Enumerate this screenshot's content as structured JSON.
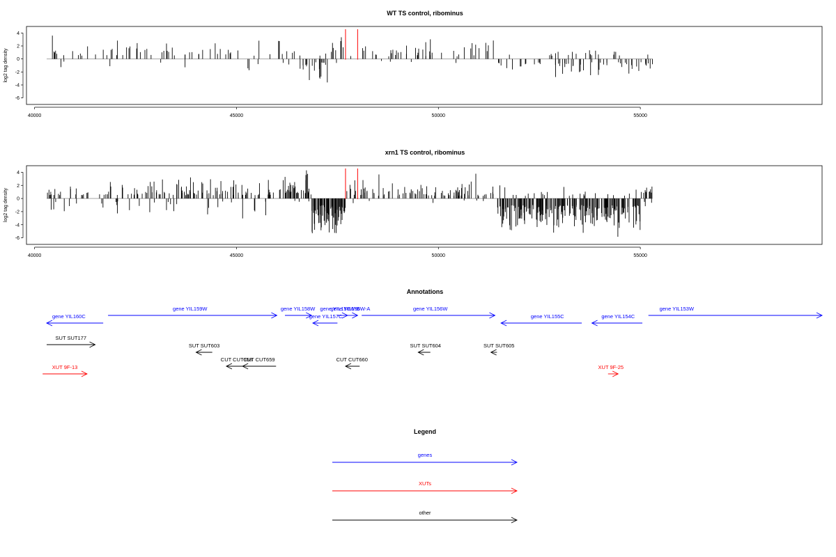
{
  "panels": [
    {
      "title": "WT TS control, ribominus",
      "ylabel": "log2 tag density",
      "yticks": [
        -6,
        -4,
        -2,
        0,
        2,
        4
      ],
      "xticks": [
        40000,
        45000,
        50000,
        55000
      ],
      "xlim": [
        39800,
        59500
      ],
      "ylim": [
        -7,
        5
      ],
      "seed": 11,
      "profile": [
        {
          "from": 40300,
          "to": 46500,
          "n": 70,
          "sign": "mixed",
          "pos": [
            0.5,
            3.8
          ],
          "neg": [
            -0.4,
            -2.0
          ],
          "negFrac": 0.12
        },
        {
          "from": 46500,
          "to": 47300,
          "n": 22,
          "sign": "neg",
          "pos": [
            0.3,
            1.5
          ],
          "neg": [
            -0.5,
            -4.2
          ],
          "negFrac": 0.85
        },
        {
          "from": 47300,
          "to": 51400,
          "n": 55,
          "sign": "mixed",
          "pos": [
            0.4,
            3.5
          ],
          "neg": [
            -0.3,
            -1.5
          ],
          "negFrac": 0.08
        },
        {
          "from": 51400,
          "to": 55300,
          "n": 75,
          "sign": "mixed",
          "pos": [
            0.5,
            1.8
          ],
          "neg": [
            -0.5,
            -3.3
          ],
          "negFrac": 0.78
        }
      ],
      "markers": [
        47700,
        48000
      ]
    },
    {
      "title": "xrn1 TS control, ribominus",
      "ylabel": "log2 tag density",
      "yticks": [
        -6,
        -4,
        -2,
        0,
        2,
        4
      ],
      "xticks": [
        40000,
        45000,
        50000,
        55000
      ],
      "xlim": [
        39800,
        59500
      ],
      "ylim": [
        -7,
        5
      ],
      "seed": 23,
      "profile": [
        {
          "from": 40300,
          "to": 41700,
          "n": 30,
          "sign": "mixed",
          "pos": [
            0.5,
            2.3
          ],
          "neg": [
            -0.5,
            -2.9
          ],
          "negFrac": 0.35
        },
        {
          "from": 41700,
          "to": 46200,
          "n": 130,
          "sign": "mixed",
          "pos": [
            0.5,
            3.9
          ],
          "neg": [
            -0.4,
            -3.8
          ],
          "negFrac": 0.12
        },
        {
          "from": 46200,
          "to": 46800,
          "n": 40,
          "sign": "pos",
          "pos": [
            0.8,
            4.8
          ],
          "neg": [
            -0.3,
            -1.0
          ],
          "negFrac": 0.05
        },
        {
          "from": 46800,
          "to": 47700,
          "n": 75,
          "sign": "neg",
          "pos": [
            0.3,
            1.0
          ],
          "neg": [
            -1.0,
            -6.0
          ],
          "negFrac": 0.95
        },
        {
          "from": 47700,
          "to": 51400,
          "n": 95,
          "sign": "mixed",
          "pos": [
            0.4,
            4.0
          ],
          "neg": [
            -0.3,
            -1.2
          ],
          "negFrac": 0.05
        },
        {
          "from": 51400,
          "to": 55000,
          "n": 230,
          "sign": "neg",
          "pos": [
            0.4,
            2.4
          ],
          "neg": [
            -1.0,
            -6.2
          ],
          "negFrac": 0.9
        },
        {
          "from": 55000,
          "to": 55300,
          "n": 14,
          "sign": "pos",
          "pos": [
            0.8,
            3.0
          ],
          "neg": [
            -0.5,
            -1.8
          ],
          "negFrac": 0.25
        }
      ],
      "markers": [
        47700,
        48000
      ]
    }
  ],
  "annotations": {
    "title": "Annotations",
    "items": [
      {
        "label": "gene YIL160C",
        "color": "#0000ff",
        "row": 0,
        "x1": 40300,
        "x2": 41700,
        "dir": "left",
        "lx": 40850,
        "ldy": -7
      },
      {
        "label": "gene YIL159W",
        "color": "#0000ff",
        "row": -1,
        "x1": 41820,
        "x2": 46000,
        "dir": "right",
        "lx": 43850,
        "ldy": -7
      },
      {
        "label": "gene YIL158W",
        "color": "#0000ff",
        "row": -1,
        "x1": 46200,
        "x2": 46860,
        "dir": "right",
        "lx": 46520,
        "ldy": -7
      },
      {
        "label": "gene YIL157C",
        "color": "#0000ff",
        "row": 0,
        "x1": 46890,
        "x2": 47500,
        "dir": "left",
        "lx": 47210,
        "ldy": -7
      },
      {
        "label": "gene YIL156W-B",
        "color": "#0000ff",
        "row": -1,
        "x1": 47500,
        "x2": 47750,
        "dir": "right",
        "lx": 47560,
        "ldy": -7
      },
      {
        "label": "gene YIL156W-A",
        "color": "#0000ff",
        "row": -1,
        "x1": 47750,
        "x2": 48000,
        "dir": "right",
        "lx": 47820,
        "ldy": -7
      },
      {
        "label": "gene YIL156W",
        "color": "#0000ff",
        "row": -1,
        "x1": 48100,
        "x2": 51400,
        "dir": "right",
        "lx": 49800,
        "ldy": -7
      },
      {
        "label": "gene YIL155C",
        "color": "#0000ff",
        "row": 0,
        "x1": 51550,
        "x2": 53550,
        "dir": "left",
        "lx": 52700,
        "ldy": -7
      },
      {
        "label": "gene YIL154C",
        "color": "#0000ff",
        "row": 0,
        "x1": 53800,
        "x2": 55050,
        "dir": "left",
        "lx": 54450,
        "ldy": -7
      },
      {
        "label": "gene YIL153W",
        "color": "#0000ff",
        "row": -1,
        "x1": 55200,
        "x2": 59500,
        "dir": "right",
        "lx": 55900,
        "ldy": -7
      },
      {
        "label": "SUT SUT177",
        "color": "#000000",
        "row": 1,
        "x1": 40300,
        "x2": 41500,
        "dir": "right",
        "lx": 40900,
        "ldy": -7
      },
      {
        "label": "SUT SUT603",
        "color": "#000000",
        "row": 2,
        "x1": 44000,
        "x2": 44400,
        "dir": "left",
        "lx": 44200,
        "ldy": -7
      },
      {
        "label": "SUT SUT604",
        "color": "#000000",
        "row": 2,
        "x1": 49500,
        "x2": 49800,
        "dir": "left",
        "lx": 49680,
        "ldy": -7
      },
      {
        "label": "SUT SUT605",
        "color": "#000000",
        "row": 2,
        "x1": 51300,
        "x2": 51450,
        "dir": "left",
        "lx": 51500,
        "ldy": -7
      },
      {
        "label": "CUT CUT658",
        "color": "#000000",
        "row": 3,
        "x1": 44750,
        "x2": 45250,
        "dir": "left",
        "lx": 45000,
        "ldy": -7
      },
      {
        "label": "CUT CUT659",
        "color": "#000000",
        "row": 3,
        "x1": 45150,
        "x2": 45980,
        "dir": "left",
        "lx": 45560,
        "ldy": -7
      },
      {
        "label": "CUT CUT660",
        "color": "#000000",
        "row": 3,
        "x1": 47700,
        "x2": 48050,
        "dir": "left",
        "lx": 47860,
        "ldy": -7
      },
      {
        "label": "XUT 9F-13",
        "color": "#ff0000",
        "row": 4,
        "x1": 40200,
        "x2": 41300,
        "dir": "right",
        "lx": 40750,
        "ldy": -7
      },
      {
        "label": "XUT 9F-25",
        "color": "#ff0000",
        "row": 4,
        "x1": 54200,
        "x2": 54450,
        "dir": "right",
        "lx": 54270,
        "ldy": -7
      }
    ]
  },
  "legend": {
    "title": "Legend",
    "items": [
      {
        "label": "genes",
        "color": "#0000ff"
      },
      {
        "label": "XUTs",
        "color": "#ff0000"
      },
      {
        "label": "other",
        "color": "#000000"
      }
    ]
  },
  "chart_data": [
    {
      "type": "bar",
      "title": "WT TS control, ribominus",
      "xlabel": "",
      "ylabel": "log2 tag density",
      "xlim": [
        39800,
        59500
      ],
      "ylim": [
        -7,
        5
      ],
      "grid": false,
      "description_of_series": "dense vertical spikes of log2 tag density along genomic positions ~40300-55300; positive mostly 40000-51400, negative cluster ~46500-47300 and 51400-55300; two red marker lines at 47700 and 48000"
    },
    {
      "type": "bar",
      "title": "xrn1 TS control, ribominus",
      "xlabel": "",
      "ylabel": "log2 tag density",
      "xlim": [
        39800,
        59500
      ],
      "ylim": [
        -7,
        5
      ],
      "grid": false,
      "description_of_series": "dense vertical spikes; strong negative region ~46800-47700 (to about -6) and ~51400-55000 (to about -6.2); positive spikes up to ~4.8 near 46500; red marker lines at 47700 and 48000"
    }
  ]
}
